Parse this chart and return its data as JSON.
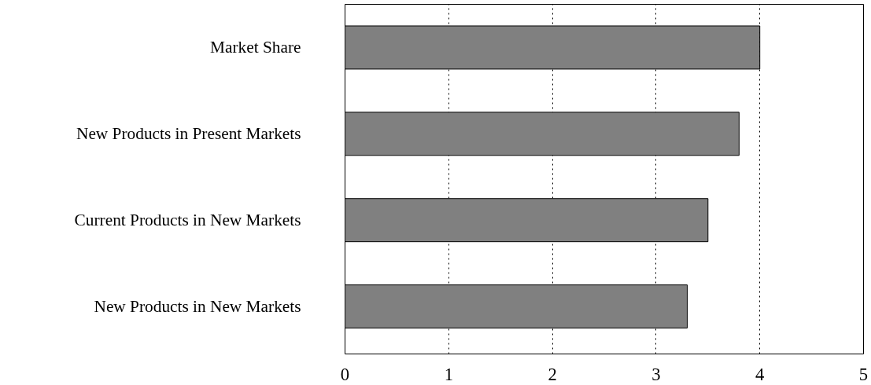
{
  "chart_data": {
    "type": "bar",
    "orientation": "horizontal",
    "categories": [
      "Market Share",
      "New Products in Present Markets",
      "Current Products in New Markets",
      "New Products in New Markets"
    ],
    "values": [
      4.0,
      3.8,
      3.5,
      3.3
    ],
    "color": "#808080",
    "xlim": [
      0,
      5
    ],
    "xticks": [
      0,
      1,
      2,
      3,
      4,
      5
    ],
    "grid": "x"
  }
}
